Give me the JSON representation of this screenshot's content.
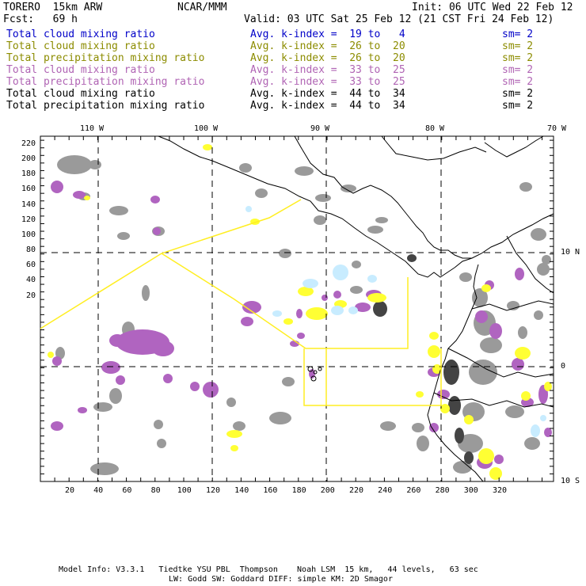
{
  "header": {
    "run_name": "TORERO  15km ARW",
    "center": "NCAR/MMM",
    "init": "Init: 06 UTC Wed 22 Feb 12",
    "fcst": "Fcst:   69 h",
    "valid": "Valid: 03 UTC Sat 25 Feb 12 (21 CST Fri 24 Feb 12)"
  },
  "legend": [
    {
      "field": "Total cloud mixing ratio",
      "kindex": "Avg. k-index =  19 to   4",
      "sm": "sm= 2",
      "color": "#0000c8"
    },
    {
      "field": "Total cloud mixing ratio",
      "kindex": "Avg. k-index =  26 to  20",
      "sm": "sm= 2",
      "color": "#8c8c00"
    },
    {
      "field": "Total precipitation mixing ratio",
      "kindex": "Avg. k-index =  26 to  20",
      "sm": "sm= 2",
      "color": "#8c8c00"
    },
    {
      "field": "Total cloud mixing ratio",
      "kindex": "Avg. k-index =  33 to  25",
      "sm": "sm= 2",
      "color": "#b064b4"
    },
    {
      "field": "Total precipitation mixing ratio",
      "kindex": "Avg. k-index =  33 to  25",
      "sm": "sm= 2",
      "color": "#b064b4"
    },
    {
      "field": "Total cloud mixing ratio",
      "kindex": "Avg. k-index =  44 to  34",
      "sm": "sm= 2",
      "color": "#000000"
    },
    {
      "field": "Total precipitation mixing ratio",
      "kindex": "Avg. k-index =  44 to  34",
      "sm": "sm= 2",
      "color": "#000000"
    }
  ],
  "map": {
    "top_lon_labels": [
      "110 W",
      "100 W",
      "90 W",
      "80 W",
      "70 W"
    ],
    "right_lat_labels": [
      "10 N",
      "0",
      "10 S"
    ],
    "left_grid_labels": [
      "220",
      "200",
      "180",
      "160",
      "140",
      "120",
      "100",
      "80",
      "60",
      "40",
      "20"
    ],
    "bottom_grid_labels": [
      "20",
      "40",
      "60",
      "80",
      "100",
      "120",
      "140",
      "160",
      "180",
      "200",
      "220",
      "240",
      "260",
      "280",
      "300",
      "320"
    ],
    "colors": {
      "gray_cloud": "#9a9a9a",
      "dark_cloud": "#444444",
      "purple": "#b064c0",
      "yellow": "#ffff33",
      "light_blue": "#c8ecff",
      "box_line": "#ffee22",
      "coast": "#000000"
    }
  },
  "footer": {
    "line1": "Model Info: V3.3.1   Tiedtke YSU PBL  Thompson    Noah LSM  15 km,   44 levels,   63 sec",
    "line2": "LW: Godd SW: Goddard DIFF: simple KM: 2D Smagor"
  }
}
